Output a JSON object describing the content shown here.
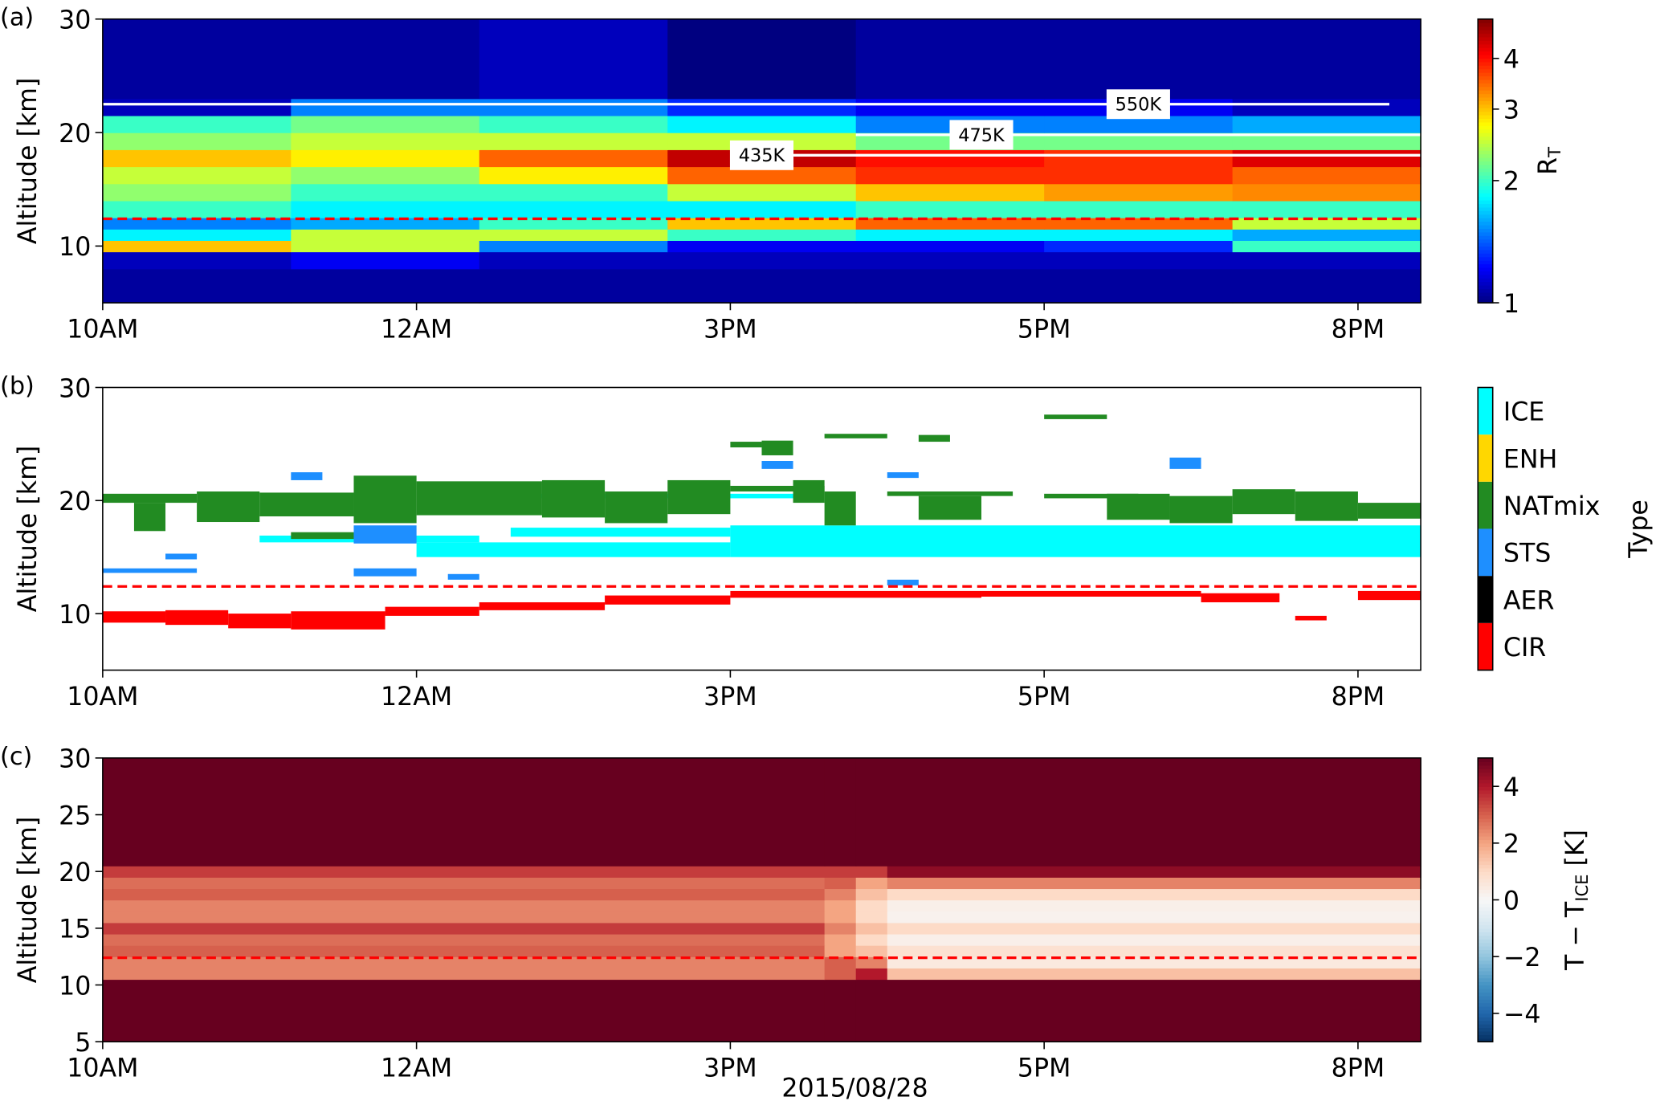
{
  "chart_data": [
    {
      "type": "heatmap",
      "panel_label": "(a)",
      "ylabel": "Altitude [km]",
      "colorbar_label": {
        "text": "R",
        "sub": "T"
      },
      "colormap": "jet",
      "log": true,
      "clim": [
        1,
        5
      ],
      "cticks": [
        1,
        2,
        3,
        4
      ],
      "xlim": [
        0,
        4.2
      ],
      "xticks": [
        {
          "value": 0,
          "label": "10AM"
        },
        {
          "value": 1,
          "label": "12AM"
        },
        {
          "value": 2,
          "label": "3PM"
        },
        {
          "value": 3,
          "label": "5PM"
        },
        {
          "value": 4,
          "label": "8PM"
        }
      ],
      "ylim": [
        5,
        30
      ],
      "yticks": [
        10,
        20,
        30
      ],
      "x_edges": [
        0,
        0.6,
        1.2,
        1.8,
        2.4,
        3.0,
        3.6,
        4.2
      ],
      "y_edges": [
        5,
        8,
        9.5,
        10.5,
        11.5,
        12.5,
        14,
        15.5,
        17,
        18.5,
        20,
        21.5,
        23,
        30
      ],
      "values": [
        [
          1.05,
          1.05,
          1.05,
          1.05,
          1.05,
          1.05,
          1.05
        ],
        [
          1.1,
          1.2,
          1.1,
          1.1,
          1.1,
          1.1,
          1.1
        ],
        [
          3,
          2.5,
          1.5,
          1.2,
          1.2,
          1.3,
          2
        ],
        [
          1.8,
          2.5,
          2.5,
          2,
          1.8,
          1.8,
          1.6
        ],
        [
          1.5,
          1.6,
          2,
          3,
          3.5,
          3.5,
          2.5
        ],
        [
          2,
          1.8,
          1.8,
          1.8,
          2,
          2,
          2
        ],
        [
          2.3,
          2,
          2,
          2.5,
          3,
          3.2,
          3.3
        ],
        [
          2.5,
          2.3,
          2.8,
          3.5,
          3.8,
          3.8,
          3.5
        ],
        [
          3,
          2.8,
          3.5,
          4.5,
          4,
          3.8,
          4.3
        ],
        [
          2.3,
          2.5,
          2.5,
          2.5,
          2.2,
          2.2,
          2.2
        ],
        [
          2,
          2.2,
          2,
          1.8,
          1.5,
          1.5,
          1.6
        ],
        [
          1.1,
          1.5,
          1.5,
          1.3,
          1.2,
          1.2,
          1.1
        ],
        [
          1.05,
          1.05,
          1.1,
          1.0,
          1.05,
          1.05,
          1.05
        ]
      ],
      "isentropes": [
        {
          "label": "435K",
          "altitude": 18.0,
          "x": [
            2.0,
            4.2
          ],
          "label_x": 2.1
        },
        {
          "label": "475K",
          "altitude": 19.8,
          "x": [
            2.4,
            4.2
          ],
          "label_x": 2.8
        },
        {
          "label": "550K",
          "altitude": 22.5,
          "x": [
            0,
            4.1
          ],
          "label_x": 3.3
        }
      ],
      "tropopause": 12.4
    },
    {
      "type": "segments",
      "panel_label": "(b)",
      "ylabel": "Altitude [km]",
      "colorbar_label": {
        "text": "Type"
      },
      "classes": [
        {
          "name": "CIR",
          "color": "#ff0000"
        },
        {
          "name": "AER",
          "color": "#000000"
        },
        {
          "name": "STS",
          "color": "#1e8fff"
        },
        {
          "name": "NATmix",
          "color": "#228b22"
        },
        {
          "name": "ENH",
          "color": "#ffd700"
        },
        {
          "name": "ICE",
          "color": "#00ffff"
        }
      ],
      "xlim": [
        0,
        4.2
      ],
      "xticks": [
        {
          "value": 0,
          "label": "10AM"
        },
        {
          "value": 1,
          "label": "12AM"
        },
        {
          "value": 2,
          "label": "3PM"
        },
        {
          "value": 3,
          "label": "5PM"
        },
        {
          "value": 4,
          "label": "8PM"
        }
      ],
      "ylim": [
        5,
        30
      ],
      "yticks": [
        10,
        20,
        30
      ],
      "boxes": [
        [
          0,
          0.2,
          9.2,
          10.2,
          0
        ],
        [
          0.2,
          0.4,
          9.0,
          10.3,
          0
        ],
        [
          0.4,
          0.6,
          8.7,
          10.0,
          0
        ],
        [
          0.6,
          0.9,
          8.6,
          10.2,
          0
        ],
        [
          0.9,
          1.2,
          9.8,
          10.6,
          0
        ],
        [
          1.2,
          1.6,
          10.3,
          11.0,
          0
        ],
        [
          1.6,
          2.0,
          10.8,
          11.6,
          0
        ],
        [
          2.0,
          2.8,
          11.4,
          12.0,
          0
        ],
        [
          2.8,
          3.5,
          11.5,
          12.0,
          0
        ],
        [
          3.5,
          3.75,
          11.0,
          11.8,
          0
        ],
        [
          3.8,
          3.9,
          9.4,
          9.8,
          0
        ],
        [
          4.0,
          4.2,
          11.2,
          12.0,
          0
        ],
        [
          0.5,
          1.2,
          16.3,
          16.9,
          5
        ],
        [
          1.0,
          2.0,
          15.0,
          16.3,
          5
        ],
        [
          1.3,
          2.0,
          16.8,
          17.6,
          5
        ],
        [
          2.0,
          4.2,
          15.0,
          17.8,
          5
        ],
        [
          1.2,
          2.2,
          20.2,
          20.6,
          5
        ],
        [
          0,
          0.3,
          19.8,
          20.6,
          3
        ],
        [
          0.1,
          0.2,
          17.3,
          19.8,
          3
        ],
        [
          0.3,
          0.5,
          18.1,
          20.8,
          3
        ],
        [
          0.5,
          0.8,
          18.6,
          20.7,
          3
        ],
        [
          0.6,
          0.8,
          16.6,
          17.2,
          3
        ],
        [
          0.8,
          1.0,
          18.0,
          22.2,
          3
        ],
        [
          1.0,
          1.4,
          18.7,
          21.7,
          3
        ],
        [
          1.4,
          1.6,
          18.5,
          21.8,
          3
        ],
        [
          1.6,
          1.8,
          18.0,
          20.8,
          3
        ],
        [
          1.8,
          2.0,
          18.8,
          21.8,
          3
        ],
        [
          2.0,
          2.3,
          20.8,
          21.3,
          3
        ],
        [
          2.0,
          2.1,
          24.7,
          25.2,
          3
        ],
        [
          2.1,
          2.2,
          24.0,
          25.3,
          3
        ],
        [
          2.2,
          2.3,
          19.8,
          21.8,
          3
        ],
        [
          2.3,
          2.5,
          25.5,
          25.9,
          3
        ],
        [
          2.3,
          2.4,
          17.8,
          20.8,
          3
        ],
        [
          2.5,
          2.9,
          20.4,
          20.8,
          3
        ],
        [
          2.6,
          2.7,
          25.2,
          25.8,
          3
        ],
        [
          2.6,
          2.8,
          18.3,
          20.4,
          3
        ],
        [
          3.0,
          3.2,
          27.2,
          27.6,
          3
        ],
        [
          3.0,
          3.3,
          20.2,
          20.6,
          3
        ],
        [
          3.2,
          3.4,
          18.3,
          20.6,
          3
        ],
        [
          3.4,
          3.6,
          18.0,
          20.4,
          3
        ],
        [
          3.6,
          3.8,
          18.8,
          21.0,
          3
        ],
        [
          3.8,
          4.0,
          18.2,
          20.8,
          3
        ],
        [
          4.0,
          4.2,
          18.4,
          19.8,
          3
        ],
        [
          0.2,
          0.3,
          14.8,
          15.3,
          2
        ],
        [
          0,
          0.3,
          13.6,
          14.0,
          2
        ],
        [
          0.6,
          0.7,
          21.8,
          22.5,
          2
        ],
        [
          0.8,
          1.0,
          13.3,
          14.0,
          2
        ],
        [
          0.8,
          1.0,
          16.2,
          17.8,
          2
        ],
        [
          1.1,
          1.2,
          13.0,
          13.5,
          2
        ],
        [
          2.1,
          2.2,
          22.8,
          23.5,
          2
        ],
        [
          2.5,
          2.6,
          12.5,
          13.0,
          2
        ],
        [
          2.5,
          2.6,
          22.0,
          22.5,
          2
        ],
        [
          3.4,
          3.5,
          22.8,
          23.8,
          2
        ]
      ],
      "tropopause": 12.4
    },
    {
      "type": "heatmap",
      "panel_label": "(c)",
      "ylabel": "Altitude [km]",
      "xlabel": "2015/08/28",
      "colorbar_label": {
        "text": "T − T",
        "sub": "ICE",
        "after": " [K]"
      },
      "colormap": "RdBu_r",
      "log": false,
      "clim": [
        -5,
        5
      ],
      "cticks": [
        {
          "value": -4,
          "label": "−4"
        },
        {
          "value": -2,
          "label": "−2"
        },
        0,
        2,
        4
      ],
      "xlim": [
        0,
        4.2
      ],
      "xticks": [
        {
          "value": 0,
          "label": "10AM"
        },
        {
          "value": 1,
          "label": "12AM"
        },
        {
          "value": 2,
          "label": "3PM"
        },
        {
          "value": 3,
          "label": "5PM"
        },
        {
          "value": 4,
          "label": "8PM"
        }
      ],
      "ylim": [
        5,
        30
      ],
      "yticks": [
        5,
        10,
        15,
        20,
        25,
        30
      ],
      "x_edges": [
        0,
        2.3,
        2.4,
        2.5,
        4.2
      ],
      "y_edges": [
        5,
        10.5,
        11.5,
        12.5,
        13.5,
        14.5,
        15.5,
        16.5,
        17.5,
        18.5,
        19.5,
        20.5,
        30
      ],
      "values": [
        [
          6,
          6,
          6,
          6
        ],
        [
          2.5,
          3,
          4,
          1.5
        ],
        [
          2.5,
          3,
          2.5,
          0.5
        ],
        [
          3.0,
          2,
          1.5,
          0.8
        ],
        [
          2.8,
          2,
          1,
          0.3
        ],
        [
          3.5,
          2.5,
          1.5,
          1.0
        ],
        [
          2.5,
          2,
          1,
          0.2
        ],
        [
          2.5,
          2,
          1,
          0.3
        ],
        [
          3.0,
          2.5,
          1.5,
          1.0
        ],
        [
          2.8,
          3,
          2,
          2.5
        ],
        [
          3.5,
          3.5,
          3.5,
          4.5
        ],
        [
          6,
          6,
          6,
          6
        ]
      ],
      "tropopause": 12.4
    }
  ]
}
